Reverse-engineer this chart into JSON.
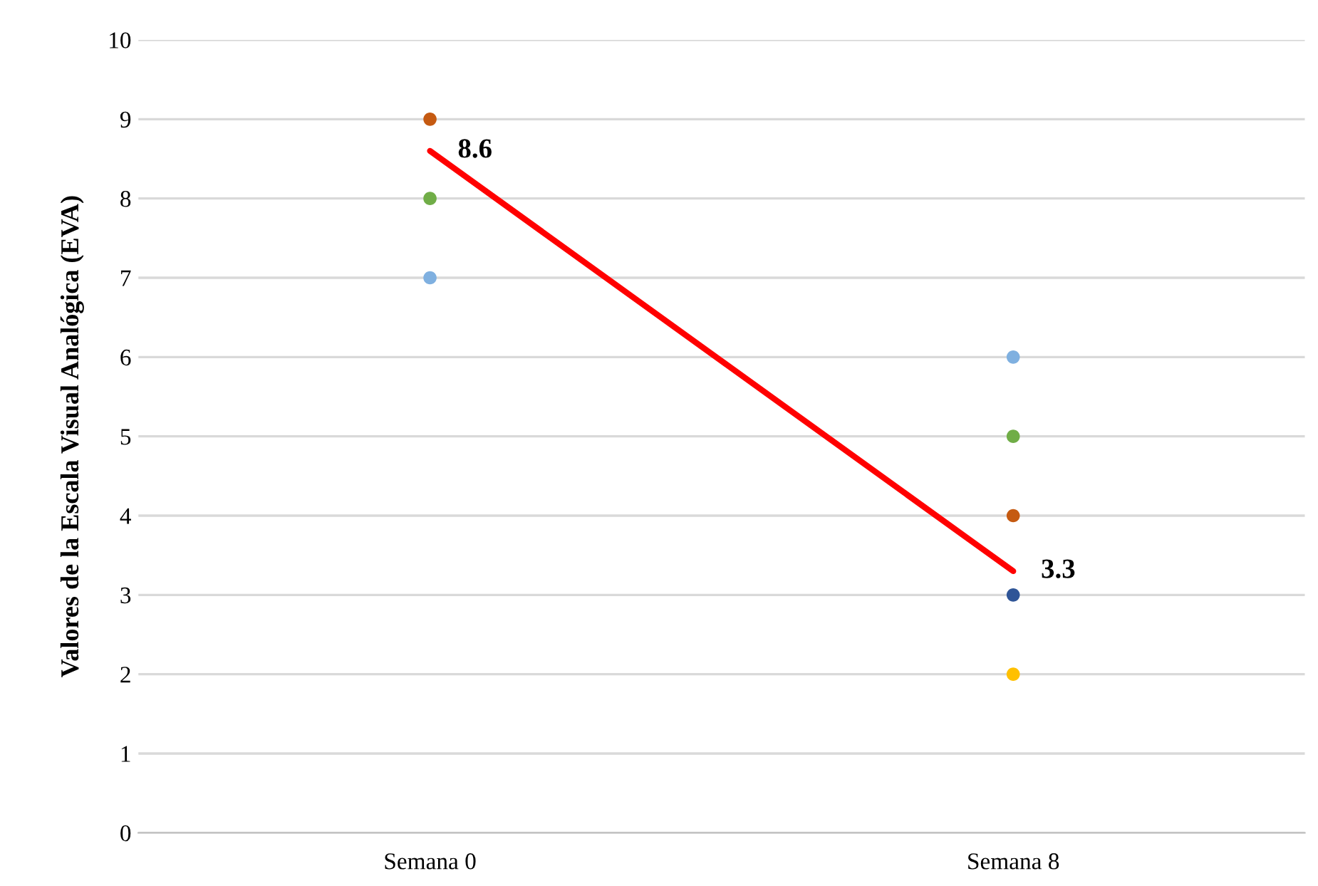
{
  "chart_data": {
    "type": "scatter",
    "ylabel": "Valores de la Escala Visual Analógica (EVA)",
    "categories": [
      "Semana 0",
      "Semana 8"
    ],
    "ylim": [
      0,
      10
    ],
    "yticks": [
      0,
      1,
      2,
      3,
      4,
      5,
      6,
      7,
      8,
      9,
      10
    ],
    "grid": "y",
    "marker": "circle",
    "series": [
      {
        "color": "#c55a11",
        "values": [
          9,
          4
        ]
      },
      {
        "color": "#70ad47",
        "values": [
          8,
          5
        ]
      },
      {
        "color": "#7fb0e0",
        "values": [
          7,
          6
        ]
      },
      {
        "color": "#2f5597",
        "values": [
          null,
          3
        ]
      },
      {
        "color": "#ffc000",
        "values": [
          null,
          2
        ]
      },
      {
        "type": "line",
        "color": "#ff0000",
        "values": [
          8.6,
          3.3
        ],
        "value_labels": [
          "8.6",
          "3.3"
        ],
        "marker": "none"
      }
    ]
  }
}
